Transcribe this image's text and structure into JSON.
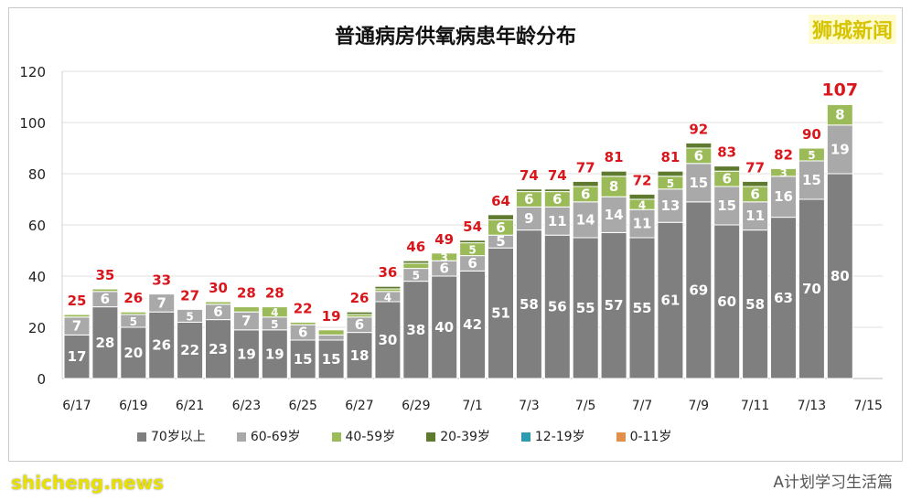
{
  "title": "普通病房供氧病患年龄分布",
  "logo": "狮城新闻",
  "watermark": "shicheng.news",
  "wechat_watermark": "A计划学习生活篇",
  "chart_data": {
    "type": "bar",
    "stacked": true,
    "title": "普通病房供氧病患年龄分布",
    "categories": [
      "6/17",
      "6/18",
      "6/19",
      "6/20",
      "6/21",
      "6/22",
      "6/23",
      "6/24",
      "6/25",
      "6/26",
      "6/27",
      "6/28",
      "6/29",
      "6/30",
      "7/1",
      "7/2",
      "7/3",
      "7/4",
      "7/5",
      "7/6",
      "7/7",
      "7/8",
      "7/9",
      "7/10",
      "7/11",
      "7/12",
      "7/13",
      "7/14"
    ],
    "x_tick_labels": [
      "6/17",
      "6/19",
      "6/21",
      "6/23",
      "6/25",
      "6/27",
      "6/29",
      "7/1",
      "7/3",
      "7/5",
      "7/7",
      "7/9",
      "7/11",
      "7/13",
      "7/15"
    ],
    "ylim": [
      0,
      120
    ],
    "y_ticks": [
      0,
      20,
      40,
      60,
      80,
      100,
      120
    ],
    "grid": true,
    "legend": "bottom",
    "series": [
      {
        "name": "70岁以上",
        "color": "#7f7f7f",
        "values": [
          17,
          28,
          20,
          26,
          22,
          23,
          19,
          19,
          15,
          15,
          18,
          30,
          38,
          40,
          42,
          51,
          58,
          56,
          55,
          57,
          55,
          61,
          69,
          60,
          58,
          63,
          70,
          80
        ]
      },
      {
        "name": "60-69岁",
        "color": "#a9a9a9",
        "values": [
          7,
          6,
          5,
          7,
          5,
          6,
          7,
          5,
          6,
          2,
          6,
          4,
          5,
          6,
          6,
          5,
          9,
          11,
          14,
          14,
          11,
          13,
          15,
          15,
          11,
          16,
          15,
          19
        ]
      },
      {
        "name": "40-59岁",
        "color": "#9bbb59",
        "values": [
          1,
          1,
          1,
          0,
          0,
          1,
          2,
          4,
          1,
          2,
          1,
          1,
          2,
          3,
          5,
          6,
          6,
          6,
          6,
          8,
          4,
          5,
          6,
          6,
          6,
          3,
          5,
          8
        ]
      },
      {
        "name": "20-39岁",
        "color": "#5e7a2e",
        "values": [
          0,
          0,
          0,
          0,
          0,
          0,
          0,
          0,
          0,
          0,
          1,
          1,
          1,
          0,
          1,
          2,
          1,
          1,
          2,
          2,
          2,
          2,
          2,
          2,
          2,
          0,
          0,
          0
        ]
      },
      {
        "name": "12-19岁",
        "color": "#2e9bb0",
        "values": [
          0,
          0,
          0,
          0,
          0,
          0,
          0,
          0,
          0,
          0,
          0,
          0,
          0,
          0,
          0,
          0,
          0,
          0,
          0,
          0,
          0,
          0,
          0,
          0,
          0,
          0,
          0,
          0
        ]
      },
      {
        "name": "0-11岁",
        "color": "#e0904a",
        "values": [
          0,
          0,
          0,
          0,
          0,
          0,
          0,
          0,
          0,
          0,
          0,
          0,
          0,
          0,
          0,
          0,
          0,
          0,
          0,
          0,
          0,
          0,
          0,
          0,
          0,
          0,
          0,
          0
        ]
      }
    ],
    "totals": [
      25,
      35,
      26,
      33,
      27,
      30,
      28,
      28,
      22,
      19,
      26,
      36,
      46,
      49,
      54,
      64,
      74,
      74,
      77,
      81,
      72,
      81,
      92,
      83,
      77,
      82,
      90,
      107
    ],
    "total_label_color": "#d9161c"
  }
}
